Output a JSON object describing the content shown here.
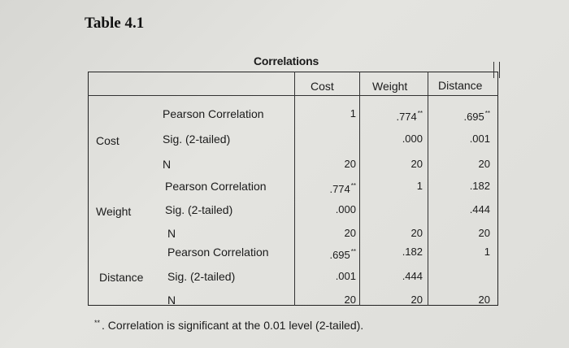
{
  "table_title": "Table 4.1",
  "caption": "Correlations",
  "columns": [
    "Cost",
    "Weight",
    "Distance"
  ],
  "row_groups": [
    {
      "variable": "Cost",
      "rows": [
        {
          "stat": "Pearson Correlation",
          "cells": [
            "1",
            ".774",
            ".695"
          ],
          "sig": [
            "",
            "**",
            "**"
          ]
        },
        {
          "stat": "Sig. (2-tailed)",
          "cells": [
            "",
            ".000",
            ".001"
          ],
          "sig": [
            "",
            "",
            ""
          ]
        },
        {
          "stat": "N",
          "cells": [
            "20",
            "20",
            "20"
          ],
          "sig": [
            "",
            "",
            ""
          ]
        }
      ]
    },
    {
      "variable": "Weight",
      "rows": [
        {
          "stat": "Pearson Correlation",
          "cells": [
            ".774",
            "1",
            ".182"
          ],
          "sig": [
            "**",
            "",
            ""
          ]
        },
        {
          "stat": "Sig. (2-tailed)",
          "cells": [
            ".000",
            "",
            ".444"
          ],
          "sig": [
            "",
            "",
            ""
          ]
        },
        {
          "stat": "N",
          "cells": [
            "20",
            "20",
            "20"
          ],
          "sig": [
            "",
            "",
            ""
          ]
        }
      ]
    },
    {
      "variable": "Distance",
      "rows": [
        {
          "stat": "Pearson Correlation",
          "cells": [
            ".695",
            ".182",
            "1"
          ],
          "sig": [
            "**",
            "",
            ""
          ]
        },
        {
          "stat": "Sig. (2-tailed)",
          "cells": [
            ".001",
            ".444",
            ""
          ],
          "sig": [
            "",
            "",
            ""
          ]
        },
        {
          "stat": "N",
          "cells": [
            "20",
            "20",
            "20"
          ],
          "sig": [
            "",
            "",
            ""
          ]
        }
      ]
    }
  ],
  "footnote": {
    "marker": "**",
    "text": ". Correlation is significant at the 0.01 level (2-tailed)."
  }
}
